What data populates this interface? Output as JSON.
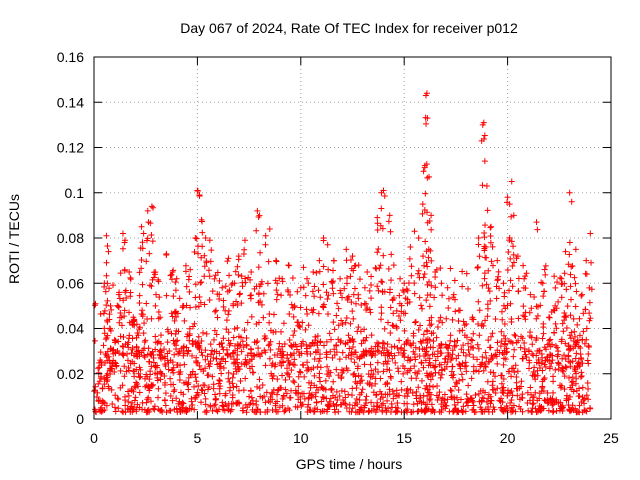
{
  "chart_data": {
    "type": "scatter",
    "title": "Day 067 of 2024, Rate Of TEC Index for receiver p012",
    "xlabel": "GPS time / hours",
    "ylabel": "ROTI / TECUs",
    "xlim": [
      0,
      25
    ],
    "ylim": [
      0,
      0.16
    ],
    "x_ticks": [
      0,
      5,
      10,
      15,
      20,
      25
    ],
    "y_ticks": [
      0,
      0.02,
      0.04,
      0.06,
      0.08,
      0.1,
      0.12,
      0.14,
      0.16
    ],
    "x_tick_labels": [
      "0",
      "5",
      "10",
      "15",
      "20",
      "25"
    ],
    "y_tick_labels": [
      "0",
      "0.02",
      "0.04",
      "0.06",
      "0.08",
      "0.1",
      "0.12",
      "0.14",
      "0.16"
    ],
    "grid": true,
    "marker": "+",
    "marker_color": "#ff0000",
    "series": [
      {
        "name": "ROTI",
        "points": [
          [
            0.3,
            0.026
          ],
          [
            0.5,
            0.06
          ],
          [
            0.6,
            0.081
          ],
          [
            0.7,
            0.074
          ],
          [
            0.8,
            0.05
          ],
          [
            1.0,
            0.035
          ],
          [
            1.2,
            0.055
          ],
          [
            1.4,
            0.082
          ],
          [
            1.5,
            0.079
          ],
          [
            1.7,
            0.065
          ],
          [
            1.9,
            0.045
          ],
          [
            2.1,
            0.038
          ],
          [
            2.3,
            0.085
          ],
          [
            2.4,
            0.082
          ],
          [
            2.6,
            0.092
          ],
          [
            2.8,
            0.094
          ],
          [
            3.0,
            0.055
          ],
          [
            3.2,
            0.045
          ],
          [
            3.5,
            0.073
          ],
          [
            3.8,
            0.065
          ],
          [
            4.0,
            0.062
          ],
          [
            4.3,
            0.05
          ],
          [
            4.6,
            0.063
          ],
          [
            4.9,
            0.08
          ],
          [
            5.0,
            0.101
          ],
          [
            5.1,
            0.099
          ],
          [
            5.2,
            0.088
          ],
          [
            5.4,
            0.08
          ],
          [
            5.6,
            0.079
          ],
          [
            5.9,
            0.048
          ],
          [
            6.2,
            0.058
          ],
          [
            6.5,
            0.071
          ],
          [
            6.8,
            0.06
          ],
          [
            7.0,
            0.072
          ],
          [
            7.3,
            0.079
          ],
          [
            7.6,
            0.065
          ],
          [
            7.9,
            0.092
          ],
          [
            8.0,
            0.09
          ],
          [
            8.3,
            0.081
          ],
          [
            8.5,
            0.084
          ],
          [
            8.8,
            0.07
          ],
          [
            9.1,
            0.062
          ],
          [
            9.4,
            0.068
          ],
          [
            9.7,
            0.05
          ],
          [
            10.0,
            0.058
          ],
          [
            10.3,
            0.062
          ],
          [
            10.6,
            0.065
          ],
          [
            10.9,
            0.07
          ],
          [
            11.1,
            0.08
          ],
          [
            11.3,
            0.077
          ],
          [
            11.6,
            0.07
          ],
          [
            11.9,
            0.062
          ],
          [
            12.2,
            0.075
          ],
          [
            12.5,
            0.072
          ],
          [
            12.8,
            0.068
          ],
          [
            13.1,
            0.058
          ],
          [
            13.4,
            0.063
          ],
          [
            13.7,
            0.089
          ],
          [
            13.9,
            0.1
          ],
          [
            14.0,
            0.101
          ],
          [
            14.3,
            0.09
          ],
          [
            14.5,
            0.068
          ],
          [
            14.8,
            0.062
          ],
          [
            15.0,
            0.06
          ],
          [
            15.3,
            0.076
          ],
          [
            15.5,
            0.083
          ],
          [
            15.7,
            0.08
          ],
          [
            15.9,
            0.095
          ],
          [
            16.0,
            0.112
          ],
          [
            16.05,
            0.143
          ],
          [
            16.1,
            0.144
          ],
          [
            16.12,
            0.133
          ],
          [
            16.2,
            0.107
          ],
          [
            16.3,
            0.09
          ],
          [
            16.5,
            0.065
          ],
          [
            16.8,
            0.06
          ],
          [
            17.1,
            0.058
          ],
          [
            17.4,
            0.055
          ],
          [
            17.7,
            0.048
          ],
          [
            18.0,
            0.042
          ],
          [
            18.3,
            0.045
          ],
          [
            18.6,
            0.08
          ],
          [
            18.8,
            0.13
          ],
          [
            18.85,
            0.131
          ],
          [
            18.9,
            0.114
          ],
          [
            19.0,
            0.103
          ],
          [
            19.2,
            0.085
          ],
          [
            19.5,
            0.07
          ],
          [
            19.8,
            0.06
          ],
          [
            20.0,
            0.098
          ],
          [
            20.1,
            0.095
          ],
          [
            20.2,
            0.105
          ],
          [
            20.3,
            0.09
          ],
          [
            20.5,
            0.072
          ],
          [
            20.8,
            0.062
          ],
          [
            21.1,
            0.055
          ],
          [
            21.4,
            0.087
          ],
          [
            21.7,
            0.06
          ],
          [
            22.0,
            0.045
          ],
          [
            22.3,
            0.05
          ],
          [
            22.6,
            0.062
          ],
          [
            22.8,
            0.074
          ],
          [
            23.0,
            0.1
          ],
          [
            23.1,
            0.096
          ],
          [
            23.3,
            0.075
          ],
          [
            23.6,
            0.055
          ],
          [
            23.8,
            0.07
          ],
          [
            24.0,
            0.082
          ]
        ],
        "dense_band": {
          "x_range": [
            0,
            24
          ],
          "y_range": [
            0.003,
            0.035
          ],
          "note": "dense cloud of points along baseline"
        }
      }
    ]
  }
}
